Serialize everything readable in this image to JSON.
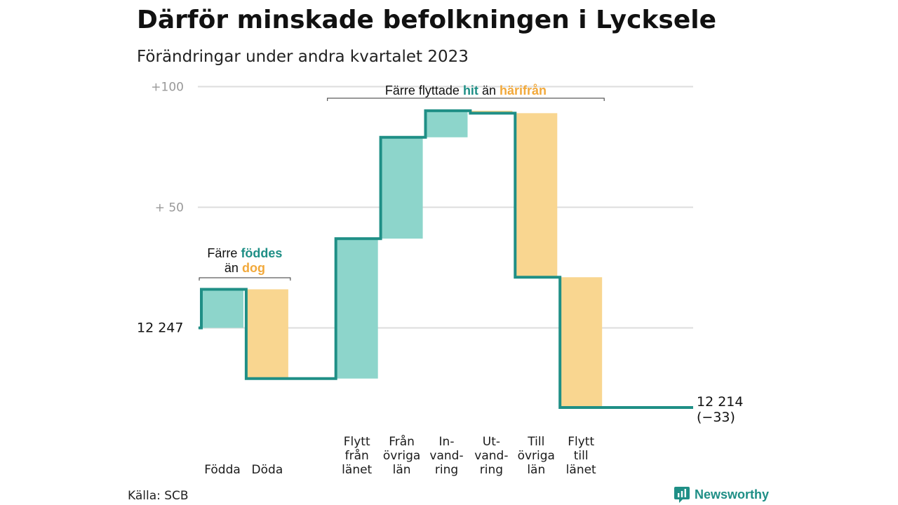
{
  "title": "Därför minskade befolkningen i Lycksele",
  "subtitle": "Förändringar under andra kvartalet 2023",
  "source": "Källa: SCB",
  "brand": {
    "name": "Newsworthy",
    "icon": "newsworthy-logo-icon",
    "color": "#1f8f86"
  },
  "colors": {
    "increase": "#8dd5cb",
    "decrease": "#f9d690",
    "line": "#1f8f86",
    "accent_text_teal": "#1f8f86",
    "accent_text_orange": "#f2a93b",
    "grid": "#dddddd"
  },
  "chart_data": {
    "type": "bar",
    "subtype": "waterfall",
    "start_label": "12  247",
    "start_value": 12247,
    "end_label": "12 214",
    "end_change_label": "(−33)",
    "end_value": 12214,
    "y_ticks": [
      {
        "value": 100,
        "label": "+100"
      },
      {
        "value": 50,
        "label": "+  50"
      }
    ],
    "ylim": [
      -35,
      100
    ],
    "grid": true,
    "categories": [
      {
        "lines": [
          "Födda"
        ],
        "value": 16,
        "kind": "increase"
      },
      {
        "lines": [
          "Döda"
        ],
        "value": -37,
        "kind": "decrease"
      },
      {
        "lines": [
          ""
        ],
        "value": 0,
        "kind": "gap"
      },
      {
        "lines": [
          "Flytt",
          "från",
          "länet"
        ],
        "value": 58,
        "kind": "increase"
      },
      {
        "lines": [
          "Från",
          "övriga",
          "län"
        ],
        "value": 42,
        "kind": "increase"
      },
      {
        "lines": [
          "In-",
          "vand-",
          "ring"
        ],
        "value": 11,
        "kind": "increase"
      },
      {
        "lines": [
          "Ut-",
          "vand-",
          "ring"
        ],
        "value": -1,
        "kind": "decrease"
      },
      {
        "lines": [
          "Till",
          "övriga",
          "län"
        ],
        "value": -68,
        "kind": "decrease"
      },
      {
        "lines": [
          "Flytt",
          "till",
          "länet"
        ],
        "value": -54,
        "kind": "decrease"
      }
    ],
    "annotations": [
      {
        "id": "births",
        "parts": [
          {
            "text": "Färre ",
            "style": "plain"
          },
          {
            "text": "föddes",
            "style": "teal"
          }
        ],
        "parts2": [
          {
            "text": "än ",
            "style": "plain"
          },
          {
            "text": "dog",
            "style": "orange"
          }
        ]
      },
      {
        "id": "moves",
        "parts": [
          {
            "text": "Färre flyttade ",
            "style": "plain"
          },
          {
            "text": "hit",
            "style": "teal"
          },
          {
            "text": " än ",
            "style": "plain"
          },
          {
            "text": "härifrån",
            "style": "orange"
          }
        ]
      }
    ]
  }
}
